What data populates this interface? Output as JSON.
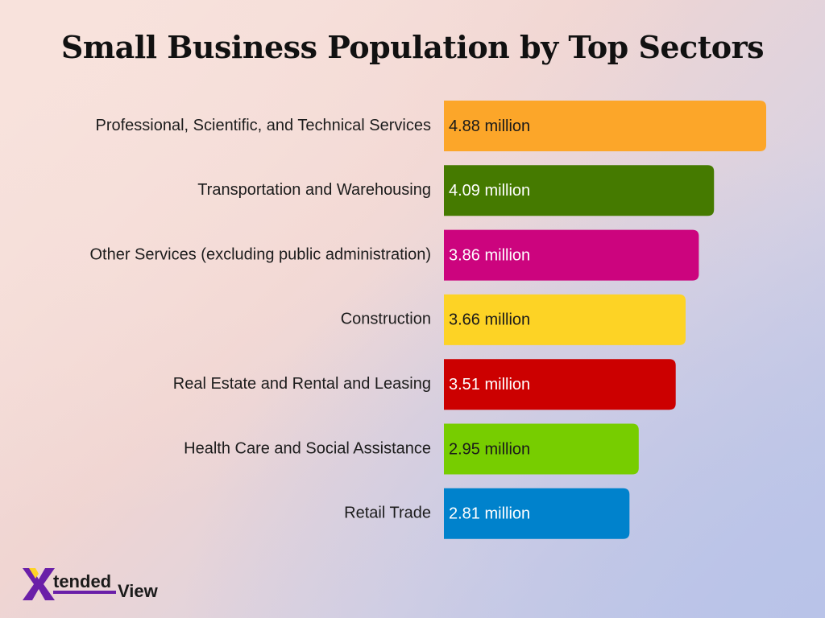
{
  "chart_data": {
    "type": "bar",
    "orientation": "horizontal",
    "title": "Small Business Population by Top Sectors",
    "xlabel": "",
    "ylabel": "",
    "unit": "million",
    "xlim": [
      0,
      5.25
    ],
    "grid": false,
    "categories": [
      "Professional, Scientific, and Technical Services",
      "Transportation and Warehousing",
      "Other Services (excluding public administration)",
      "Construction",
      "Real Estate and Rental and Leasing",
      "Health Care and Social Assistance",
      "Retail Trade"
    ],
    "values": [
      4.88,
      4.09,
      3.86,
      3.66,
      3.51,
      2.95,
      2.81
    ],
    "data_labels": [
      "4.88 million",
      "4.09 million",
      "3.86 million",
      "3.66 million",
      "3.51 million",
      "2.95 million",
      "2.81 million"
    ],
    "colors": [
      "#fca629",
      "#457a00",
      "#cc047e",
      "#fdd325",
      "#cc0000",
      "#77cd00",
      "#0082cc"
    ],
    "label_colors": [
      "#1a1a1a",
      "#ffffff",
      "#ffffff",
      "#1a1a1a",
      "#ffffff",
      "#1a1a1a",
      "#ffffff"
    ]
  },
  "logo": {
    "text_main": "tended",
    "text_second": "View",
    "primary_color": "#6a1fa8",
    "icon": "x-logo-icon"
  }
}
